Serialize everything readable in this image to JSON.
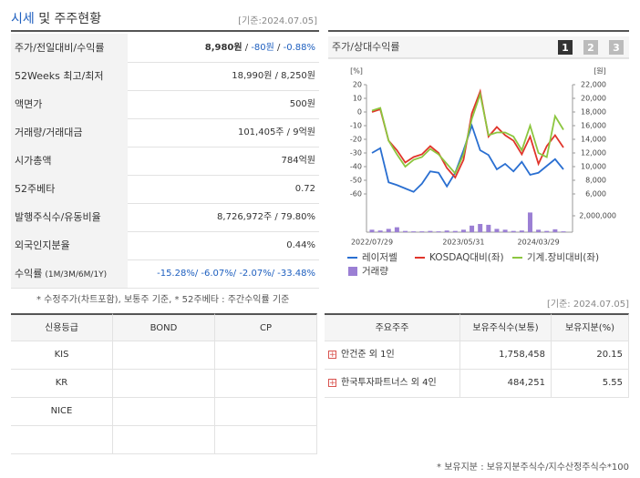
{
  "header": {
    "title_main": "시세",
    "title_rest": "및 주주현황",
    "date": "[기준:2024.07.05]"
  },
  "summary": {
    "rows": [
      {
        "label": "주가/전일대비/수익률",
        "parts": [
          {
            "text": "8,980원",
            "style": "bold"
          },
          {
            "text": " / "
          },
          {
            "text": "-80원",
            "style": "down"
          },
          {
            "text": " / "
          },
          {
            "text": "-0.88%",
            "style": "down"
          }
        ]
      },
      {
        "label": "52Weeks 최고/최저",
        "parts": [
          {
            "text": "18,990원 / 8,250원"
          }
        ]
      },
      {
        "label": "액면가",
        "parts": [
          {
            "text": "500원"
          }
        ]
      },
      {
        "label": "거래량/거래대금",
        "parts": [
          {
            "text": "101,405주 / 9억원"
          }
        ]
      },
      {
        "label": "시가총액",
        "parts": [
          {
            "text": "784억원"
          }
        ]
      },
      {
        "label": "52주베타",
        "parts": [
          {
            "text": "0.72"
          }
        ]
      },
      {
        "label": "발행주식수/유동비율",
        "parts": [
          {
            "text": "8,726,972주 / 79.80%"
          }
        ]
      },
      {
        "label": "외국인지분율",
        "parts": [
          {
            "text": "0.44%"
          }
        ]
      },
      {
        "label": "수익률",
        "label_sub": "(1M/3M/6M/1Y)",
        "parts": [
          {
            "text": "-15.28%/",
            "style": "down"
          },
          {
            "text": " -6.07%/",
            "style": "down"
          },
          {
            "text": " -2.07%/",
            "style": "down"
          },
          {
            "text": " -33.48%",
            "style": "down"
          }
        ]
      }
    ],
    "note": "* 수정주가(차트포함), 보통주 기준, * 52주베타 : 주간수익률 기준"
  },
  "chart_data": {
    "type": "line",
    "title": "주가/상대수익률",
    "buttons": [
      "1",
      "2",
      "3"
    ],
    "y_unit": "[%]",
    "y2_unit": "[원]",
    "categories": [
      "2022/07/29",
      null,
      null,
      null,
      null,
      null,
      null,
      null,
      null,
      null,
      null,
      "2023/05/31",
      null,
      null,
      null,
      null,
      null,
      null,
      null,
      null,
      "2024/03/29",
      null,
      null,
      null
    ],
    "ylim": [
      -60,
      20
    ],
    "yticks": [
      20,
      10,
      0,
      -10,
      -20,
      -30,
      -40,
      -50,
      -60
    ],
    "y2lim": [
      6000,
      22000
    ],
    "y2ticks": [
      {
        "value": 22000,
        "label": "22,000"
      },
      {
        "value": 20000,
        "label": "20,000"
      },
      {
        "value": 18000,
        "label": "18,000"
      },
      {
        "value": 16000,
        "label": "16,000"
      },
      {
        "value": 14000,
        "label": "14,000"
      },
      {
        "value": 12000,
        "label": "12,000"
      },
      {
        "value": 10000,
        "label": "10,000"
      },
      {
        "value": 8000,
        "label": "8,000"
      },
      {
        "value": 6000,
        "label": "6,000"
      }
    ],
    "volume_lim": [
      0,
      2000000
    ],
    "volume_ticks": [
      {
        "value": 2000000,
        "label": "2,000,000"
      }
    ],
    "series": [
      {
        "name": "레이저쎌",
        "color": "#2a6fd1",
        "axis": "y2",
        "values": [
          12000,
          12700,
          7700,
          7300,
          6800,
          6300,
          7500,
          9300,
          9100,
          7100,
          9100,
          12400,
          16000,
          12400,
          11700,
          9600,
          10400,
          9300,
          10700,
          8800,
          9100,
          10100,
          11100,
          9600
        ]
      },
      {
        "name": "KOSDAQ대비(좌)",
        "color": "#e0352b",
        "values": [
          0,
          2,
          -21,
          -28,
          -37,
          -33,
          -31,
          -25,
          -30,
          -41,
          -48,
          -35,
          -1,
          15,
          -18,
          -11,
          -17,
          -21,
          -31,
          -18,
          -38,
          -25,
          -17,
          -26
        ]
      },
      {
        "name": "기계.장비대비(좌)",
        "color": "#8cc63f",
        "values": [
          1,
          3,
          -21,
          -31,
          -40,
          -35,
          -33,
          -27,
          -31,
          -38,
          -45,
          -31,
          -5,
          13,
          -17,
          -15,
          -15,
          -18,
          -28,
          -10,
          -30,
          -33,
          -3,
          -13
        ]
      },
      {
        "name": "거래량",
        "color": "#9b7fd4",
        "axis": "volume",
        "values": [
          300000,
          200000,
          400000,
          600000,
          150000,
          100000,
          100000,
          150000,
          100000,
          200000,
          150000,
          300000,
          800000,
          1000000,
          900000,
          400000,
          300000,
          150000,
          200000,
          2400000,
          300000,
          150000,
          350000,
          100000
        ]
      }
    ]
  },
  "date2": "[기준: 2024.07.05]",
  "credit": {
    "header": [
      "신용등급",
      "BOND",
      "CP"
    ],
    "rows": [
      [
        "KIS"
      ],
      [
        "KR"
      ],
      [
        "NICE"
      ],
      []
    ]
  },
  "holders": {
    "header": [
      "주요주주",
      "보유주식수(보통)",
      "보유지분(%)"
    ],
    "rows": [
      [
        "안건준 외 1인",
        "1,758,458",
        "20.15"
      ],
      [
        "한국투자파트너스 외 4인",
        "484,251",
        "5.55"
      ]
    ],
    "note": "* 보유지분 : 보유지분주식수/지수산정주식수*100"
  }
}
